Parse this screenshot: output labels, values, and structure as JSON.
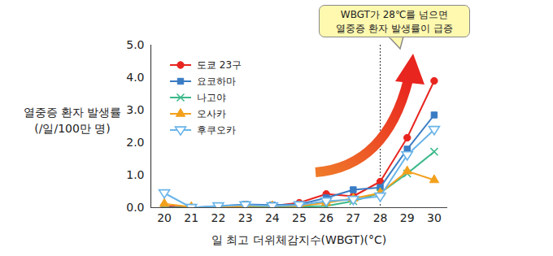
{
  "chart_data": {
    "type": "line",
    "x_label": "일 최고 더위체감지수(WBGT)(°C)",
    "y_label": "열중증 환자 발생률\n(/일/100만 명)",
    "x": [
      20,
      21,
      22,
      23,
      24,
      25,
      26,
      27,
      28,
      29,
      30
    ],
    "series": [
      {
        "name": "도쿄 23구",
        "color": "#e8251f",
        "marker": "circle",
        "values": [
          0.05,
          0.0,
          0.02,
          0.05,
          0.05,
          0.15,
          0.42,
          0.35,
          0.8,
          2.15,
          3.9
        ]
      },
      {
        "name": "요코하마",
        "color": "#3a7cc4",
        "marker": "square",
        "values": [
          0.0,
          0.0,
          0.05,
          0.1,
          0.08,
          0.1,
          0.3,
          0.55,
          0.62,
          1.8,
          2.85
        ]
      },
      {
        "name": "나고야",
        "color": "#3cb98a",
        "marker": "x",
        "values": [
          0.0,
          0.0,
          0.02,
          0.03,
          0.03,
          0.03,
          0.05,
          0.2,
          0.45,
          1.05,
          1.72
        ]
      },
      {
        "name": "오사카",
        "color": "#f2a01c",
        "marker": "triangle",
        "values": [
          0.12,
          0.02,
          0.0,
          0.05,
          0.05,
          0.05,
          0.15,
          0.28,
          0.45,
          1.12,
          0.85
        ]
      },
      {
        "name": "후쿠오카",
        "color": "#6ab4e8",
        "marker": "triangle-down-open",
        "values": [
          0.45,
          0.0,
          0.05,
          0.08,
          0.05,
          0.08,
          0.2,
          0.25,
          0.35,
          1.62,
          2.4
        ]
      }
    ],
    "xlim": [
      19.5,
      30.5
    ],
    "xticks": [
      20,
      21,
      22,
      23,
      24,
      25,
      26,
      27,
      28,
      29,
      30
    ],
    "ylim": [
      0,
      5
    ],
    "yticks": [
      {
        "value": 0,
        "label": "0.0"
      },
      {
        "value": 1,
        "label": "1.0"
      },
      {
        "value": 2,
        "label": "2.0"
      },
      {
        "value": 3,
        "label": "3.0"
      },
      {
        "value": 4,
        "label": "4.0"
      },
      {
        "value": 5,
        "label": "5.0"
      }
    ],
    "grid": false,
    "legend": "top-left",
    "annotations": [
      {
        "text": "WBGT가 28℃를 넘으면\n열중증 환자 발생률이 급증",
        "x": 28
      }
    ]
  }
}
